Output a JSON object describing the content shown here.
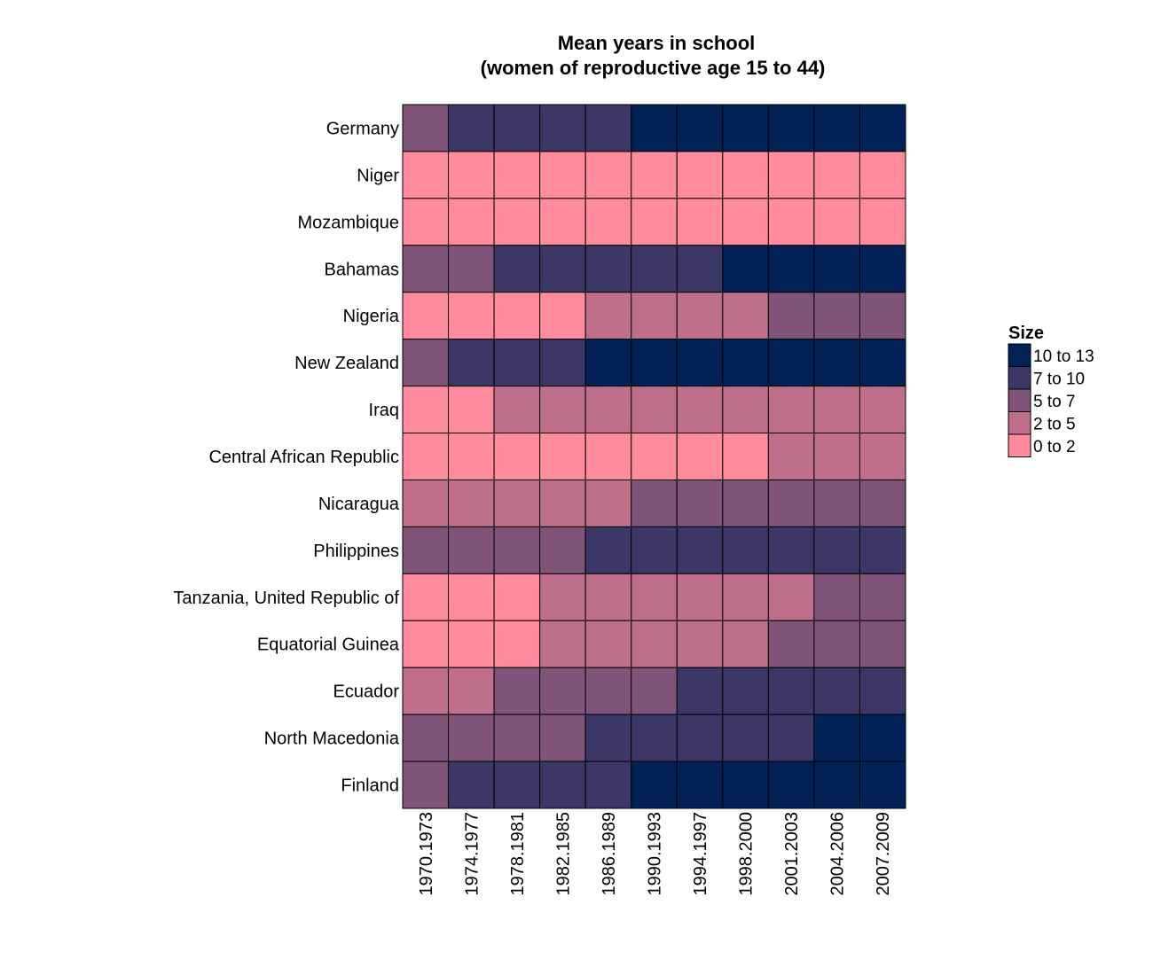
{
  "chart_data": {
    "type": "heatmap",
    "title": [
      "Mean years in school",
      "(women of reproductive age 15 to 44)"
    ],
    "xlabel": "",
    "ylabel": "",
    "x_categories": [
      "1970.1973",
      "1974.1977",
      "1978.1981",
      "1982.1985",
      "1986.1989",
      "1990.1993",
      "1994.1997",
      "1998.2000",
      "2001.2003",
      "2004.2006",
      "2007.2009"
    ],
    "y_categories": [
      "Germany",
      "Niger",
      "Mozambique",
      "Bahamas",
      "Nigeria",
      "New Zealand",
      "Iraq",
      "Central African Republic",
      "Nicaragua",
      "Philippines",
      "Tanzania, United Republic of",
      "Equatorial Guinea",
      "Ecuador",
      "North Macedonia",
      "Finland"
    ],
    "legend": {
      "title": "Size",
      "placement": "right",
      "bins": [
        {
          "label": "10 to 13",
          "color": "#022157"
        },
        {
          "label": "7 to 10",
          "color": "#3d3768"
        },
        {
          "label": "5 to 7",
          "color": "#7f5478"
        },
        {
          "label": "2 to 5",
          "color": "#bf6f8b"
        },
        {
          "label": "0 to 2",
          "color": "#ff8b9c"
        }
      ]
    },
    "values_bin_labels": [
      [
        "5 to 7",
        "7 to 10",
        "7 to 10",
        "7 to 10",
        "7 to 10",
        "10 to 13",
        "10 to 13",
        "10 to 13",
        "10 to 13",
        "10 to 13",
        "10 to 13"
      ],
      [
        "0 to 2",
        "0 to 2",
        "0 to 2",
        "0 to 2",
        "0 to 2",
        "0 to 2",
        "0 to 2",
        "0 to 2",
        "0 to 2",
        "0 to 2",
        "0 to 2"
      ],
      [
        "0 to 2",
        "0 to 2",
        "0 to 2",
        "0 to 2",
        "0 to 2",
        "0 to 2",
        "0 to 2",
        "0 to 2",
        "0 to 2",
        "0 to 2",
        "0 to 2"
      ],
      [
        "5 to 7",
        "5 to 7",
        "7 to 10",
        "7 to 10",
        "7 to 10",
        "7 to 10",
        "7 to 10",
        "10 to 13",
        "10 to 13",
        "10 to 13",
        "10 to 13"
      ],
      [
        "0 to 2",
        "0 to 2",
        "0 to 2",
        "0 to 2",
        "2 to 5",
        "2 to 5",
        "2 to 5",
        "2 to 5",
        "5 to 7",
        "5 to 7",
        "5 to 7"
      ],
      [
        "5 to 7",
        "7 to 10",
        "7 to 10",
        "7 to 10",
        "10 to 13",
        "10 to 13",
        "10 to 13",
        "10 to 13",
        "10 to 13",
        "10 to 13",
        "10 to 13"
      ],
      [
        "0 to 2",
        "0 to 2",
        "2 to 5",
        "2 to 5",
        "2 to 5",
        "2 to 5",
        "2 to 5",
        "2 to 5",
        "2 to 5",
        "2 to 5",
        "2 to 5"
      ],
      [
        "0 to 2",
        "0 to 2",
        "0 to 2",
        "0 to 2",
        "0 to 2",
        "0 to 2",
        "0 to 2",
        "0 to 2",
        "2 to 5",
        "2 to 5",
        "2 to 5"
      ],
      [
        "2 to 5",
        "2 to 5",
        "2 to 5",
        "2 to 5",
        "2 to 5",
        "5 to 7",
        "5 to 7",
        "5 to 7",
        "5 to 7",
        "5 to 7",
        "5 to 7"
      ],
      [
        "5 to 7",
        "5 to 7",
        "5 to 7",
        "5 to 7",
        "7 to 10",
        "7 to 10",
        "7 to 10",
        "7 to 10",
        "7 to 10",
        "7 to 10",
        "7 to 10"
      ],
      [
        "0 to 2",
        "0 to 2",
        "0 to 2",
        "2 to 5",
        "2 to 5",
        "2 to 5",
        "2 to 5",
        "2 to 5",
        "2 to 5",
        "5 to 7",
        "5 to 7"
      ],
      [
        "0 to 2",
        "0 to 2",
        "0 to 2",
        "2 to 5",
        "2 to 5",
        "2 to 5",
        "2 to 5",
        "2 to 5",
        "5 to 7",
        "5 to 7",
        "5 to 7"
      ],
      [
        "2 to 5",
        "2 to 5",
        "5 to 7",
        "5 to 7",
        "5 to 7",
        "5 to 7",
        "7 to 10",
        "7 to 10",
        "7 to 10",
        "7 to 10",
        "7 to 10"
      ],
      [
        "5 to 7",
        "5 to 7",
        "5 to 7",
        "5 to 7",
        "7 to 10",
        "7 to 10",
        "7 to 10",
        "7 to 10",
        "7 to 10",
        "10 to 13",
        "10 to 13"
      ],
      [
        "5 to 7",
        "7 to 10",
        "7 to 10",
        "7 to 10",
        "7 to 10",
        "10 to 13",
        "10 to 13",
        "10 to 13",
        "10 to 13",
        "10 to 13",
        "10 to 13"
      ]
    ],
    "grid": false
  }
}
